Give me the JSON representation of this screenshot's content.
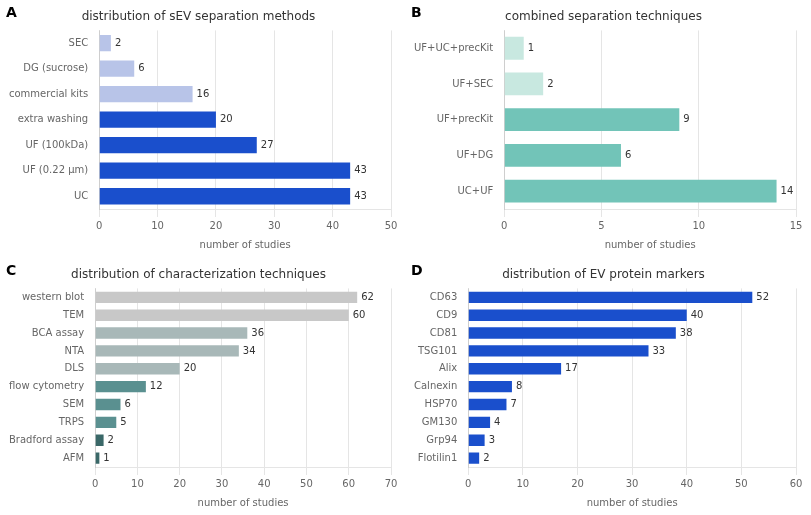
{
  "chart_data": [
    {
      "type": "bar",
      "orientation": "horizontal",
      "title": "distribution of sEV separation methods",
      "annotations": [
        "A"
      ],
      "categories": [
        "SEC",
        "DG (sucrose)",
        "commercial kits",
        "extra washing",
        "UF (100kDa)",
        "UF (0.22 μm)",
        "UC"
      ],
      "values": [
        2,
        6,
        16,
        20,
        27,
        43,
        43
      ],
      "colors": [
        "#b8c4e8",
        "#b8c4e8",
        "#b8c4e8",
        "#1a4fcc",
        "#1a4fcc",
        "#1a4fcc",
        "#1a4fcc"
      ],
      "xlabel": "number of studies",
      "xlim": [
        0,
        50
      ],
      "xticks": [
        0,
        10,
        20,
        30,
        40,
        50
      ],
      "grid": "x",
      "data_labels": true
    },
    {
      "type": "bar",
      "orientation": "horizontal",
      "title": "combined separation techniques",
      "annotations": [
        "B"
      ],
      "categories": [
        "UF+UC+precKit",
        "UF+SEC",
        "UF+precKit",
        "UF+DG",
        "UC+UF"
      ],
      "values": [
        1,
        2,
        9,
        6,
        14
      ],
      "colors": [
        "#c8e8e0",
        "#c8e8e0",
        "#72c4b8",
        "#72c4b8",
        "#72c4b8"
      ],
      "xlabel": "number of studies",
      "xlim": [
        0,
        15
      ],
      "xticks": [
        0,
        5,
        10,
        15
      ],
      "grid": "x",
      "data_labels": true
    },
    {
      "type": "bar",
      "orientation": "horizontal",
      "title": "distribution of characterization techniques",
      "annotations": [
        "C"
      ],
      "categories": [
        "western blot",
        "TEM",
        "BCA assay",
        "NTA",
        "DLS",
        "flow cytometry",
        "SEM",
        "TRPS",
        "Bradford assay",
        "AFM"
      ],
      "values": [
        62,
        60,
        36,
        34,
        20,
        12,
        6,
        5,
        2,
        1
      ],
      "colors": [
        "#c8c8c8",
        "#c8c8c8",
        "#a8b8b8",
        "#a8b8b8",
        "#a8b8b8",
        "#5a9090",
        "#5a9090",
        "#5a9090",
        "#3a6868",
        "#3a6868"
      ],
      "xlabel": "number of studies",
      "xlim": [
        0,
        70
      ],
      "xticks": [
        0,
        10,
        20,
        30,
        40,
        50,
        60,
        70
      ],
      "grid": "x",
      "data_labels": true
    },
    {
      "type": "bar",
      "orientation": "horizontal",
      "title": "distribution of EV protein markers",
      "annotations": [
        "D"
      ],
      "categories": [
        "CD63",
        "CD9",
        "CD81",
        "TSG101",
        "Alix",
        "Calnexin",
        "HSP70",
        "GM130",
        "Grp94",
        "Flotilin1"
      ],
      "values": [
        52,
        40,
        38,
        33,
        17,
        8,
        7,
        4,
        3,
        2
      ],
      "colors": [
        "#1a4fcc",
        "#1a4fcc",
        "#1a4fcc",
        "#1a4fcc",
        "#1a4fcc",
        "#1a4fcc",
        "#1a4fcc",
        "#1a4fcc",
        "#1a4fcc",
        "#1a4fcc"
      ],
      "xlabel": "number of studies",
      "xlim": [
        0,
        60
      ],
      "xticks": [
        0,
        10,
        20,
        30,
        40,
        50,
        60
      ],
      "grid": "x",
      "data_labels": true
    }
  ]
}
